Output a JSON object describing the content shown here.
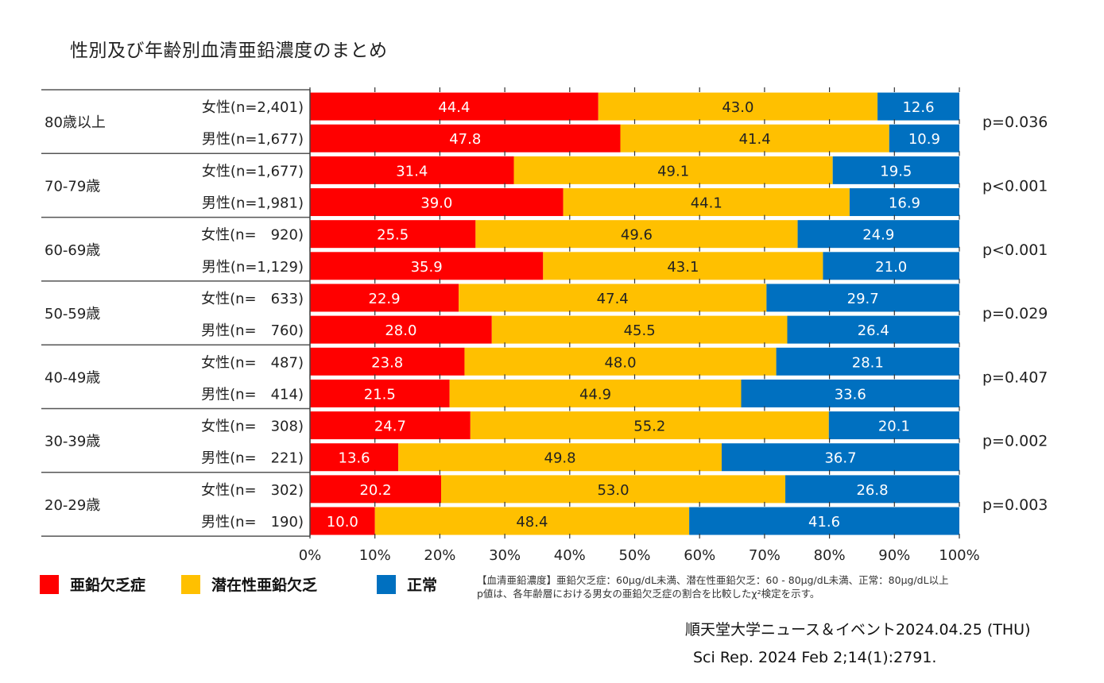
{
  "title": "性別及び年齢別血清亜鉛濃度のまとめ",
  "colors": {
    "deficiency": "#FF0000",
    "latent": "#FFC000",
    "normal": "#0070C0",
    "text_light": "#FFFFFF",
    "text_dark": "#222222"
  },
  "chart_data": {
    "type": "bar",
    "orientation": "horizontal-stacked-100",
    "title": "性別及び年齢別血清亜鉛濃度のまとめ",
    "xlabel": "",
    "ylabel": "",
    "xlim": [
      0,
      100
    ],
    "x_ticks": [
      "0%",
      "10%",
      "20%",
      "30%",
      "40%",
      "50%",
      "60%",
      "70%",
      "80%",
      "90%",
      "100%"
    ],
    "grid": false,
    "legend_position": "bottom-left",
    "series_names": [
      "亜鉛欠乏症",
      "潜在性亜鉛欠乏",
      "正常"
    ],
    "groups": [
      {
        "age": "80歳以上",
        "p_value": "p=0.036",
        "rows": [
          {
            "label": "女性(n=2,401)",
            "values": [
              44.4,
              43.0,
              12.6
            ]
          },
          {
            "label": "男性(n=1,677)",
            "values": [
              47.8,
              41.4,
              10.9
            ]
          }
        ]
      },
      {
        "age": "70-79歳",
        "p_value": "p<0.001",
        "rows": [
          {
            "label": "女性(n=1,677)",
            "values": [
              31.4,
              49.1,
              19.5
            ]
          },
          {
            "label": "男性(n=1,981)",
            "values": [
              39.0,
              44.1,
              16.9
            ]
          }
        ]
      },
      {
        "age": "60-69歳",
        "p_value": "p<0.001",
        "rows": [
          {
            "label": "女性(n=　920)",
            "values": [
              25.5,
              49.6,
              24.9
            ]
          },
          {
            "label": "男性(n=1,129)",
            "values": [
              35.9,
              43.1,
              21.0
            ]
          }
        ]
      },
      {
        "age": "50-59歳",
        "p_value": "p=0.029",
        "rows": [
          {
            "label": "女性(n=　633)",
            "values": [
              22.9,
              47.4,
              29.7
            ]
          },
          {
            "label": "男性(n=　760)",
            "values": [
              28.0,
              45.5,
              26.4
            ]
          }
        ]
      },
      {
        "age": "40-49歳",
        "p_value": "p=0.407",
        "rows": [
          {
            "label": "女性(n=　487)",
            "values": [
              23.8,
              48.0,
              28.1
            ]
          },
          {
            "label": "男性(n=　414)",
            "values": [
              21.5,
              44.9,
              33.6
            ]
          }
        ]
      },
      {
        "age": "30-39歳",
        "p_value": "p=0.002",
        "rows": [
          {
            "label": "女性(n=　308)",
            "values": [
              24.7,
              55.2,
              20.1
            ]
          },
          {
            "label": "男性(n=　221)",
            "values": [
              13.6,
              49.8,
              36.7
            ]
          }
        ]
      },
      {
        "age": "20-29歳",
        "p_value": "p=0.003",
        "rows": [
          {
            "label": "女性(n=　302)",
            "values": [
              20.2,
              53.0,
              26.8
            ]
          },
          {
            "label": "男性(n=　190)",
            "values": [
              10.0,
              48.4,
              41.6
            ]
          }
        ]
      }
    ]
  },
  "legend": [
    {
      "label": "亜鉛欠乏症",
      "color": "#FF0000"
    },
    {
      "label": "潜在性亜鉛欠乏",
      "color": "#FFC000"
    },
    {
      "label": "正常",
      "color": "#0070C0"
    }
  ],
  "note": {
    "line1": "【血清亜鉛濃度】亜鉛欠乏症：60μg/dL未満、潜在性亜鉛欠乏：60 - 80μg/dL未満、正常：80μg/dL以上",
    "line2": "p値は、各年齢層における男女の亜鉛欠乏症の割合を比較したχ²検定を示す。"
  },
  "source": {
    "line1": "順天堂大学ニュース＆イベント2024.04.25 (THU)",
    "line2": "Sci Rep. 2024 Feb 2;14(1):2791."
  }
}
